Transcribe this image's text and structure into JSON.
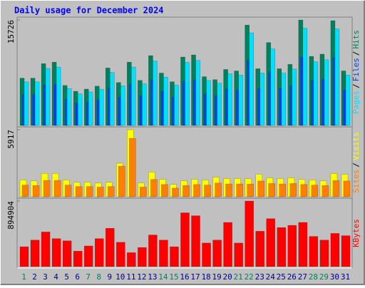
{
  "chart_data": [
    {
      "type": "bar",
      "title": "Daily usage for December 2024",
      "legend_separator": "/",
      "ylim": [
        0,
        15726
      ],
      "yticks": [
        15726
      ],
      "series": [
        {
          "name": "Hits",
          "color": "#00805c",
          "values": [
            7050,
            7050,
            9220,
            9440,
            5970,
            5100,
            5420,
            5860,
            8570,
            6400,
            9440,
            6720,
            10410,
            7810,
            6510,
            10200,
            10520,
            7270,
            6830,
            8350,
            8130,
            14970,
            8460,
            12360,
            8460,
            9110,
            15726,
            10300,
            10630,
            15620,
            8130
          ]
        },
        {
          "name": "Files",
          "color": "#0040ff",
          "values": [
            4600,
            4600,
            6000,
            6100,
            3900,
            3300,
            3500,
            3800,
            5600,
            4200,
            6100,
            4400,
            6800,
            5100,
            4200,
            6600,
            6800,
            4700,
            4400,
            5400,
            5300,
            9700,
            5500,
            8000,
            5500,
            5900,
            10200,
            6700,
            6900,
            10100,
            5300
          ]
        },
        {
          "name": "Pages",
          "color": "#00e0ff",
          "values": [
            6500,
            6500,
            8500,
            8700,
            5500,
            4700,
            5000,
            5400,
            7900,
            5900,
            8700,
            6200,
            9600,
            7200,
            6000,
            9400,
            9700,
            6700,
            6300,
            7700,
            7500,
            13800,
            7800,
            11400,
            7800,
            8400,
            14500,
            9500,
            9800,
            14400,
            7500
          ]
        }
      ]
    },
    {
      "type": "bar",
      "legend_separator": "/",
      "ylim": [
        0,
        5917
      ],
      "yticks": [
        5917
      ],
      "series": [
        {
          "name": "Visits",
          "color": "#ffff00",
          "values": [
            1480,
            1410,
            2060,
            2060,
            1480,
            1280,
            1280,
            1220,
            1280,
            2960,
            5917,
            1220,
            2180,
            1540,
            1090,
            1410,
            1540,
            1480,
            1730,
            1610,
            1610,
            1600,
            1990,
            1670,
            1610,
            1670,
            1540,
            1480,
            1410,
            2050,
            1990
          ]
        },
        {
          "name": "Sites",
          "color": "#ff8000",
          "values": [
            1030,
            990,
            1440,
            1440,
            1030,
            900,
            900,
            850,
            900,
            2700,
            5150,
            850,
            1530,
            1080,
            760,
            990,
            1080,
            1030,
            1210,
            1130,
            1130,
            1120,
            1390,
            1170,
            1130,
            1170,
            1080,
            1030,
            990,
            1430,
            1390
          ]
        }
      ]
    },
    {
      "type": "bar",
      "ylim": [
        0,
        894904
      ],
      "yticks": [
        894904
      ],
      "categories": [
        "1",
        "2",
        "3",
        "4",
        "5",
        "6",
        "7",
        "8",
        "9",
        "10",
        "11",
        "12",
        "13",
        "14",
        "15",
        "16",
        "17",
        "18",
        "19",
        "20",
        "21",
        "22",
        "23",
        "24",
        "25",
        "26",
        "27",
        "28",
        "29",
        "30",
        "31"
      ],
      "category_colors": [
        "#00805c",
        "#00008b",
        "#00008b",
        "#00008b",
        "#00008b",
        "#00008b",
        "#00805c",
        "#00805c",
        "#00008b",
        "#00008b",
        "#00008b",
        "#00008b",
        "#00008b",
        "#00805c",
        "#00805c",
        "#00008b",
        "#00008b",
        "#00008b",
        "#00008b",
        "#00008b",
        "#00805c",
        "#00805c",
        "#00008b",
        "#00008b",
        "#00008b",
        "#00008b",
        "#00008b",
        "#00805c",
        "#00805c",
        "#00008b",
        "#00008b"
      ],
      "series": [
        {
          "name": "KBytes",
          "color": "#ff0000",
          "values": [
            271000,
            362000,
            473000,
            382000,
            352000,
            211000,
            282000,
            382000,
            523000,
            332000,
            191000,
            261000,
            432000,
            362000,
            271000,
            734000,
            694000,
            322000,
            362000,
            603000,
            322000,
            894904,
            483000,
            654000,
            533000,
            563000,
            603000,
            412000,
            362000,
            453000,
            422000
          ]
        }
      ]
    }
  ]
}
